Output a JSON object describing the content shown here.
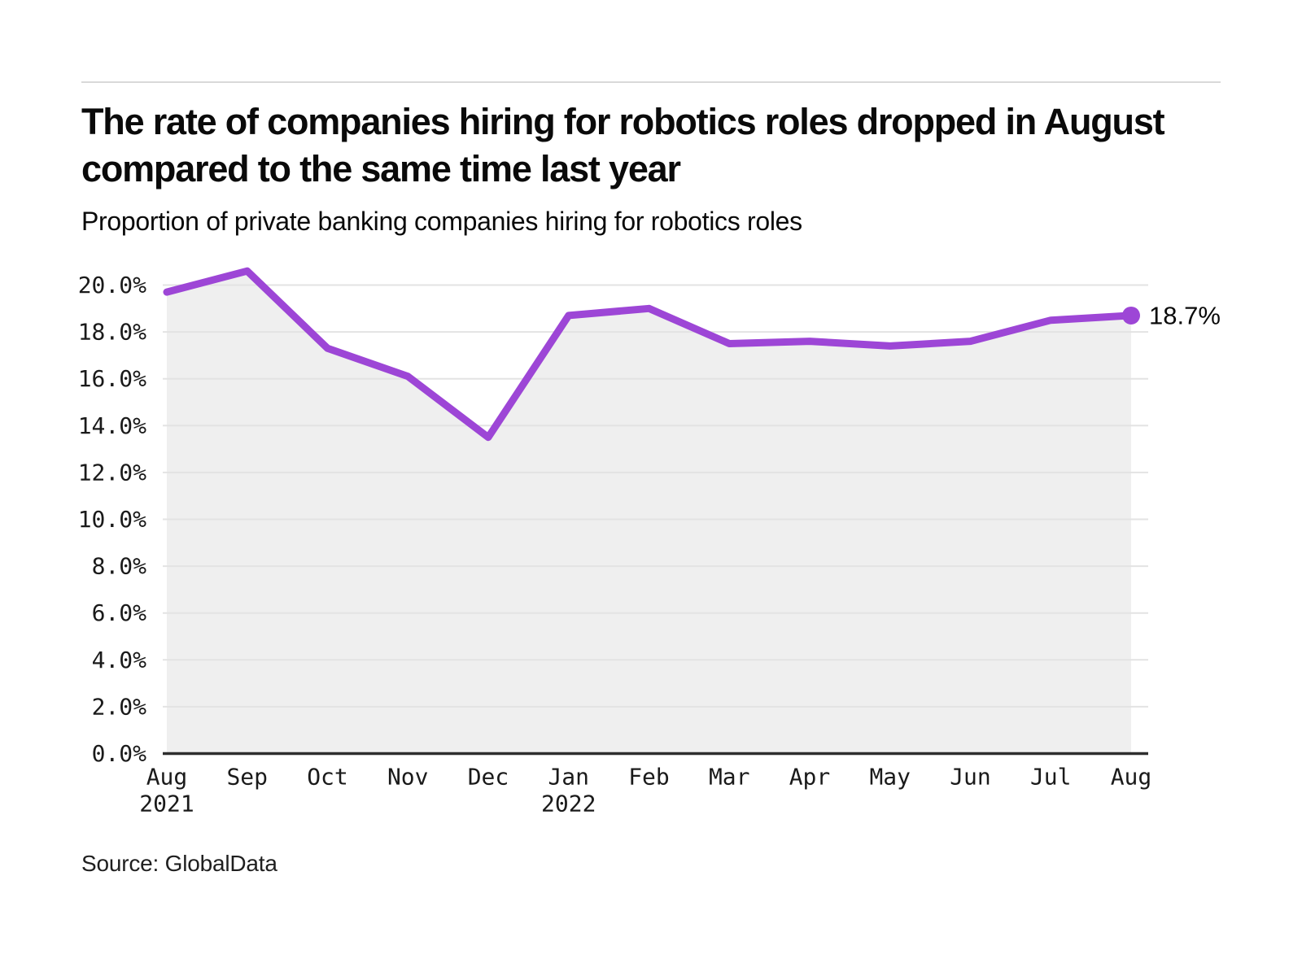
{
  "header": {
    "title": "The rate of companies hiring for robotics roles dropped in August compared to the same time last year",
    "subtitle": "Proportion of private banking companies hiring for robotics roles"
  },
  "source": "Source: GlobalData",
  "chart_data": {
    "type": "area",
    "title": "Proportion of private banking companies hiring for robotics roles",
    "categories": [
      "Aug 2021",
      "Sep",
      "Oct",
      "Nov",
      "Dec",
      "Jan 2022",
      "Feb",
      "Mar",
      "Apr",
      "May",
      "Jun",
      "Jul",
      "Aug"
    ],
    "values": [
      19.7,
      20.6,
      17.3,
      16.1,
      13.5,
      18.7,
      19.0,
      17.5,
      17.6,
      17.4,
      17.6,
      18.5,
      18.7
    ],
    "x_ticks": [
      {
        "label": "Aug",
        "sublabel": "2021"
      },
      {
        "label": "Sep"
      },
      {
        "label": "Oct"
      },
      {
        "label": "Nov"
      },
      {
        "label": "Dec"
      },
      {
        "label": "Jan",
        "sublabel": "2022"
      },
      {
        "label": "Feb"
      },
      {
        "label": "Mar"
      },
      {
        "label": "Apr"
      },
      {
        "label": "May"
      },
      {
        "label": "Jun"
      },
      {
        "label": "Jul"
      },
      {
        "label": "Aug"
      }
    ],
    "y_ticks": [
      "0.0%",
      "2.0%",
      "4.0%",
      "6.0%",
      "8.0%",
      "10.0%",
      "12.0%",
      "14.0%",
      "16.0%",
      "18.0%",
      "20.0%"
    ],
    "ylim": [
      0,
      20
    ],
    "xlabel": "",
    "ylabel": "",
    "grid": true,
    "legend": "none",
    "end_label": "18.7%",
    "colors": {
      "line": "#9d46d6",
      "area": "#efefef",
      "gridline": "#e3e3e3",
      "axis": "#2e2e2e",
      "text": "#1a1a1a"
    }
  }
}
